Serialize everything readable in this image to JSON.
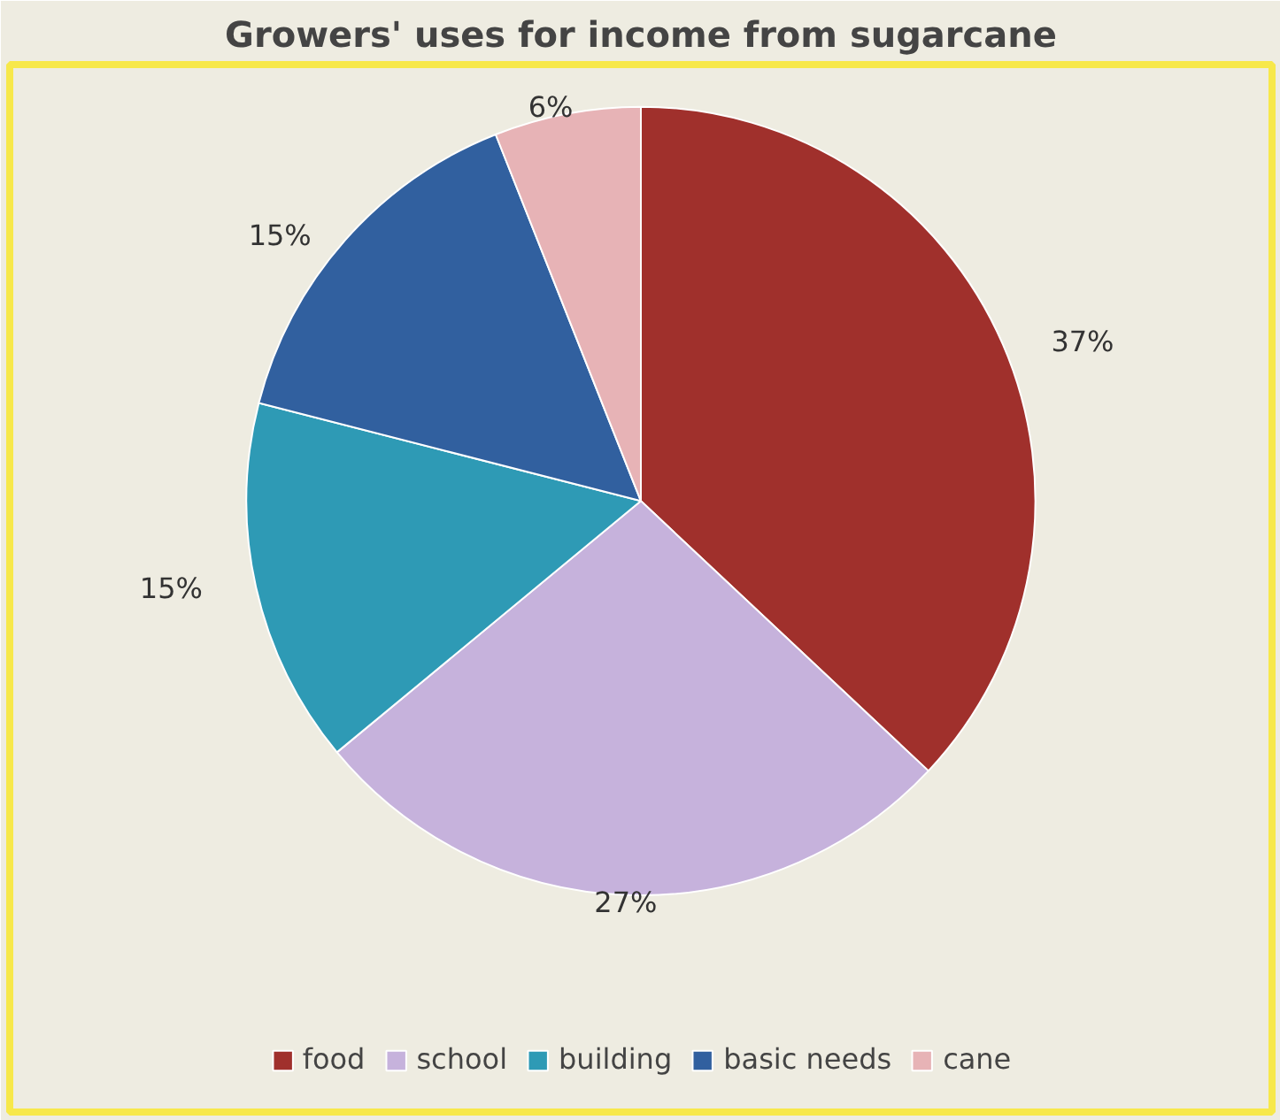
{
  "chart_data": {
    "type": "pie",
    "title": "Growers' uses for income from sugarcane",
    "categories": [
      "food",
      "school",
      "building",
      "basic needs",
      "cane"
    ],
    "values": [
      37,
      27,
      15,
      15,
      6
    ],
    "colors": [
      "#a0302c",
      "#c6b2dc",
      "#2e9ab5",
      "#31609f",
      "#e7b3b6"
    ],
    "value_labels": [
      "37%",
      "27%",
      "15%",
      "15%",
      "6%"
    ],
    "legend": "bottom"
  }
}
